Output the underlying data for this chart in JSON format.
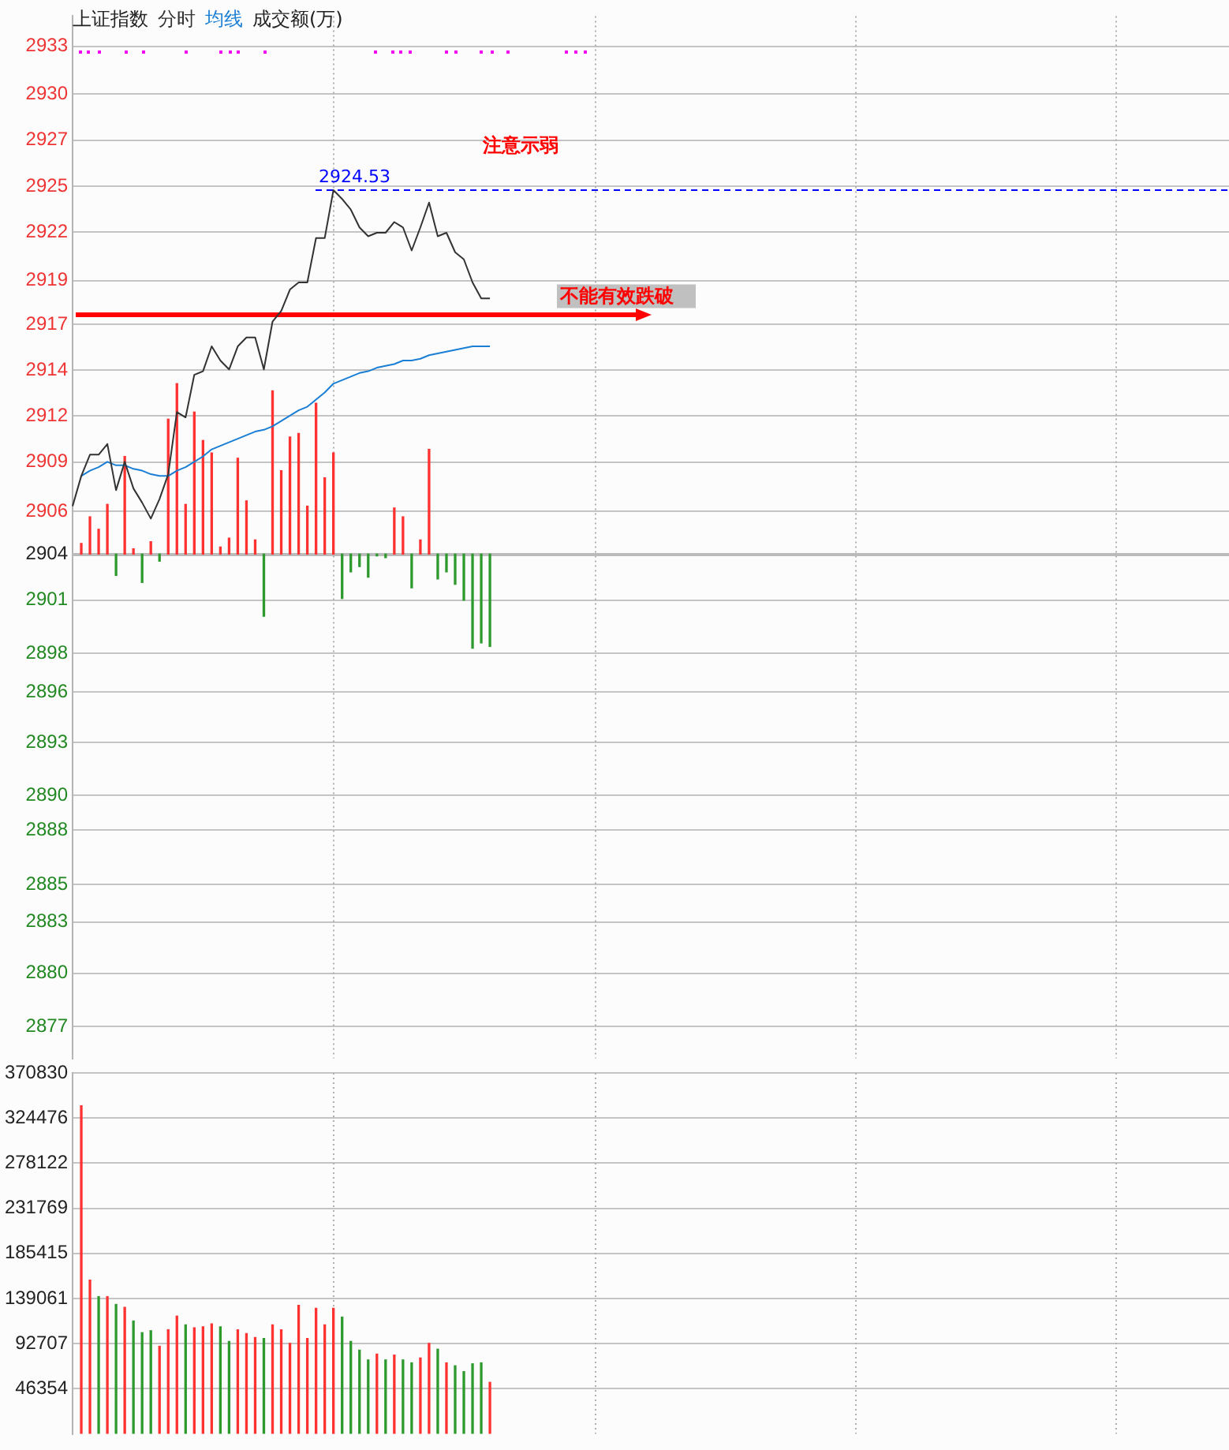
{
  "chart_data": [
    {
      "type": "line",
      "title": "上证指数",
      "legend": "top left",
      "grid": true,
      "marker": "none",
      "categories": [
        null,
        null,
        null,
        null,
        null,
        null,
        null,
        null,
        null,
        null,
        null,
        null,
        null,
        null,
        null,
        null,
        null,
        null,
        null,
        null,
        null,
        null,
        null,
        null,
        null,
        null,
        null,
        null,
        null,
        null,
        null,
        null,
        null,
        null,
        null,
        null,
        null,
        null,
        null,
        null,
        null,
        null,
        null,
        null,
        null,
        null,
        null,
        null,
        null,
        null,
        null,
        null,
        null,
        null,
        null,
        null,
        null,
        null,
        null,
        null,
        null,
        null,
        null,
        null,
        null,
        null,
        null,
        null,
        null,
        null,
        null,
        null,
        null,
        null,
        null,
        null,
        null,
        null,
        null,
        null,
        null,
        null,
        null,
        null,
        null,
        null,
        null,
        null,
        null,
        null,
        null,
        null,
        null,
        null,
        null,
        null,
        null,
        null,
        null,
        null,
        null,
        null,
        null,
        null,
        null,
        null,
        null,
        null,
        null,
        null,
        null,
        null,
        null,
        null,
        null,
        null,
        null,
        null,
        null,
        null,
        null,
        null,
        null,
        null,
        null,
        null,
        null,
        null,
        null,
        null,
        null,
        null,
        null,
        null
      ],
      "series": [
        {
          "name": "分时",
          "type": "line",
          "color": "#333333",
          "values": [
            2906.7,
            2908.4,
            2909.6,
            2909.6,
            2910.2,
            2907.6,
            2909.2,
            2907.7,
            2906.9,
            2906.0,
            2907.1,
            2908.5,
            2912.0,
            2911.7,
            2914.1,
            2914.3,
            2915.7,
            2914.9,
            2914.4,
            2915.7,
            2916.2,
            2916.2,
            2914.4,
            2917.1,
            2917.7,
            2918.9,
            2919.3,
            2919.3,
            2921.8,
            2921.8,
            2924.5,
            2924.0,
            2923.4,
            2922.4,
            2921.9,
            2922.1,
            2922.1,
            2922.7,
            2922.4,
            2921.1,
            2922.4,
            2923.8,
            2921.9,
            2922.1,
            2921.0,
            2920.6,
            2919.3,
            2918.4,
            2918.4,
            null,
            null,
            null,
            null,
            null,
            null,
            null,
            null,
            null,
            null,
            null,
            null,
            null,
            null,
            null,
            null,
            null,
            null,
            null,
            null,
            null,
            null,
            null,
            null,
            null,
            null,
            null,
            null,
            null,
            null,
            null,
            null,
            null,
            null,
            null,
            null,
            null,
            null,
            null,
            null,
            null,
            null,
            null,
            null,
            null,
            null,
            null,
            null,
            null,
            null,
            null,
            null,
            null,
            null,
            null,
            null,
            null,
            null,
            null,
            null,
            null,
            null,
            null,
            null,
            null,
            null,
            null,
            null,
            null,
            null,
            null,
            null,
            null,
            null,
            null,
            null,
            null,
            null,
            null,
            null,
            null,
            null,
            null,
            null,
            null
          ]
        },
        {
          "name": "均线",
          "type": "line",
          "color": "#1a7fd4",
          "values": [
            null,
            2908.4,
            2908.7,
            2908.9,
            2909.2,
            2909.0,
            2909.0,
            2908.8,
            2908.7,
            2908.5,
            2908.4,
            2908.4,
            2908.7,
            2908.9,
            2909.2,
            2909.5,
            2909.9,
            2910.1,
            2910.3,
            2910.5,
            2910.7,
            2910.9,
            2911.0,
            2911.2,
            2911.5,
            2911.8,
            2912.1,
            2912.3,
            2912.7,
            2913.1,
            2913.6,
            2913.8,
            2914.0,
            2914.2,
            2914.3,
            2914.5,
            2914.6,
            2914.7,
            2914.9,
            2914.9,
            2915.0,
            2915.2,
            2915.3,
            2915.4,
            2915.5,
            2915.6,
            2915.7,
            2915.7,
            2915.7,
            null,
            null,
            null,
            null,
            null,
            null,
            null,
            null,
            null,
            null,
            null,
            null,
            null,
            null,
            null,
            null,
            null,
            null,
            null,
            null,
            null,
            null,
            null,
            null,
            null,
            null,
            null,
            null,
            null,
            null,
            null,
            null,
            null,
            null,
            null,
            null,
            null,
            null,
            null,
            null,
            null,
            null,
            null,
            null,
            null,
            null,
            null,
            null,
            null,
            null,
            null,
            null,
            null,
            null,
            null,
            null,
            null,
            null,
            null,
            null,
            null,
            null,
            null,
            null,
            null,
            null,
            null,
            null,
            null,
            null,
            null,
            null,
            null,
            null,
            null,
            null,
            null,
            null,
            null,
            null,
            null,
            null,
            null,
            null,
            null
          ]
        },
        {
          "type": "bar",
          "values": [
            null,
            0.6,
            2.1,
            1.4,
            2.8,
            -1.2,
            5.5,
            0.3,
            -1.6,
            0.7,
            -0.4,
            7.6,
            9.6,
            2.8,
            8.0,
            6.4,
            5.7,
            0.4,
            0.9,
            5.4,
            3.0,
            0.8,
            -3.5,
            9.2,
            4.7,
            6.6,
            6.8,
            2.7,
            8.5,
            4.3,
            5.7,
            -2.5,
            -1.0,
            -0.7,
            -1.3,
            -0.1,
            -0.2,
            2.6,
            2.1,
            -1.9,
            0.8,
            5.9,
            -1.4,
            -1.0,
            -1.7,
            -2.6,
            -5.3,
            -5.0,
            -5.2,
            null,
            null,
            null,
            null,
            null,
            null,
            null,
            null,
            null,
            null,
            null,
            null,
            null,
            null,
            null,
            null,
            null,
            null,
            null,
            null,
            null,
            null,
            null,
            null,
            null,
            null,
            null,
            null,
            null,
            null,
            null,
            null,
            null,
            null,
            null,
            null,
            null,
            null,
            null,
            null,
            null,
            null,
            null,
            null,
            null,
            null,
            null,
            null,
            null,
            null,
            null,
            null,
            null,
            null,
            null,
            null,
            null,
            null,
            null,
            null,
            null,
            null,
            null,
            null,
            null,
            null,
            null,
            null,
            null,
            null,
            null,
            null,
            null,
            null,
            null,
            null,
            null,
            null,
            null,
            null,
            null,
            null,
            null,
            null,
            null
          ],
          "base": [
            null,
            2904,
            2904,
            2904,
            2904,
            2904,
            2904,
            2904,
            2904,
            2904,
            2904,
            2904,
            2904,
            2904,
            2904,
            2904,
            2904,
            2904,
            2904,
            2904,
            2904,
            2904,
            2904,
            2904,
            2904,
            2904,
            2904,
            2904,
            2904,
            2904,
            2904,
            2904,
            2904,
            2904,
            2904,
            2904,
            2904,
            2904,
            2904,
            2904,
            2904,
            2904,
            2904,
            2904,
            2904,
            2904,
            2904,
            2904,
            2904,
            null,
            null,
            null,
            null,
            null,
            null,
            null,
            null,
            null,
            null,
            null,
            null,
            null,
            null,
            null,
            null,
            null,
            null,
            null,
            null,
            null,
            null,
            null,
            null,
            null,
            null,
            null,
            null,
            null,
            null,
            null,
            null,
            null,
            null,
            null,
            null,
            null,
            null,
            null,
            null,
            null,
            null,
            null,
            null,
            null,
            null,
            null,
            null,
            null,
            null,
            null,
            null,
            null,
            null,
            null,
            null,
            null,
            null,
            null,
            null,
            null,
            null,
            null,
            null,
            null,
            null,
            null,
            null,
            null,
            null,
            null,
            null,
            null,
            null,
            null,
            null,
            null,
            null,
            null,
            null,
            null,
            null,
            null,
            null,
            null
          ],
          "colors": [
            null,
            "#ff3232",
            "#ff3232",
            "#ff3232",
            "#ff3232",
            "#2e9a2e",
            "#ff3232",
            "#ff3232",
            "#2e9a2e",
            "#ff3232",
            "#2e9a2e",
            "#ff3232",
            "#ff3232",
            "#ff3232",
            "#ff3232",
            "#ff3232",
            "#ff3232",
            "#ff3232",
            "#ff3232",
            "#ff3232",
            "#ff3232",
            "#ff3232",
            "#2e9a2e",
            "#ff3232",
            "#ff3232",
            "#ff3232",
            "#ff3232",
            "#ff3232",
            "#ff3232",
            "#ff3232",
            "#ff3232",
            "#2e9a2e",
            "#2e9a2e",
            "#2e9a2e",
            "#2e9a2e",
            "#2e9a2e",
            "#2e9a2e",
            "#ff3232",
            "#ff3232",
            "#2e9a2e",
            "#ff3232",
            "#ff3232",
            "#2e9a2e",
            "#2e9a2e",
            "#2e9a2e",
            "#2e9a2e",
            "#2e9a2e",
            "#2e9a2e",
            "#2e9a2e",
            null,
            null,
            null,
            null,
            null,
            null,
            null,
            null,
            null,
            null,
            null,
            null,
            null,
            null,
            null,
            null,
            null,
            null,
            null,
            null,
            null,
            null,
            null,
            null,
            null,
            null,
            null,
            null,
            null,
            null,
            null,
            null,
            null,
            null,
            null,
            null,
            null,
            null,
            null,
            null,
            null,
            null,
            null,
            null,
            null,
            null,
            null,
            null,
            null,
            null,
            null,
            null,
            null,
            null,
            null,
            null,
            null,
            null,
            null,
            null,
            null,
            null,
            null,
            null,
            null,
            null,
            null,
            null,
            null,
            null,
            null,
            null,
            null,
            null,
            null,
            null,
            null,
            null,
            null,
            null,
            null,
            null,
            null,
            null,
            null
          ]
        }
      ],
      "ylim": [
        2875.6,
        2934.3
      ],
      "yticks": [
        {
          "value": 2877.4,
          "label": "2877"
        },
        {
          "value": 2880.4,
          "label": "2880"
        },
        {
          "value": 2883.28,
          "label": "2883"
        },
        {
          "value": 2885.4,
          "label": "2885"
        },
        {
          "value": 2888.46,
          "label": "2888"
        },
        {
          "value": 2890.4,
          "label": "2890"
        },
        {
          "value": 2893.4,
          "label": "2893"
        },
        {
          "value": 2896.23,
          "label": "2896"
        },
        {
          "value": 2898.4,
          "label": "2898"
        },
        {
          "value": 2901.41,
          "label": "2901"
        },
        2904,
        {
          "value": 2906.4,
          "label": "2906"
        },
        {
          "value": 2909.18,
          "label": "2909"
        },
        {
          "value": 2911.77,
          "label": "2912"
        },
        {
          "value": 2914.36,
          "label": "2914"
        },
        {
          "value": 2916.95,
          "label": "2917"
        },
        {
          "value": 2919.4,
          "label": "2919"
        },
        {
          "value": 2922.13,
          "label": "2922"
        },
        {
          "value": 2924.72,
          "label": "2925"
        },
        {
          "value": 2927.31,
          "label": "2927"
        },
        {
          "value": 2929.9,
          "label": "2930"
        },
        {
          "value": 2932.6,
          "label": "2933"
        }
      ],
      "ref_lines": [
        {
          "axis": "y",
          "value": 2924.53,
          "label": "2924.53",
          "color": "#0000ff",
          "line_style": "dashed"
        },
        {
          "axis": "y",
          "value": 2917.5,
          "label": "不能有效跌破",
          "color": "#ff0000",
          "line_style": "solid"
        },
        {
          "axis": "y",
          "value": 2904,
          "color": "#bbbbbb",
          "line_style": "solid"
        }
      ],
      "annotations": [
        "注意示弱"
      ]
    },
    {
      "type": "bar",
      "title": "成交额(万)",
      "grid": true,
      "categories": [
        null,
        null,
        null,
        null,
        null,
        null,
        null,
        null,
        null,
        null,
        null,
        null,
        null,
        null,
        null,
        null,
        null,
        null,
        null,
        null,
        null,
        null,
        null,
        null,
        null,
        null,
        null,
        null,
        null,
        null,
        null,
        null,
        null,
        null,
        null,
        null,
        null,
        null,
        null,
        null,
        null,
        null,
        null,
        null,
        null,
        null,
        null,
        null,
        null,
        null,
        null,
        null,
        null,
        null,
        null,
        null,
        null,
        null,
        null,
        null,
        null,
        null,
        null,
        null,
        null,
        null,
        null,
        null,
        null,
        null,
        null,
        null,
        null,
        null,
        null,
        null,
        null,
        null,
        null,
        null,
        null,
        null,
        null,
        null,
        null,
        null,
        null,
        null,
        null,
        null,
        null,
        null,
        null,
        null,
        null,
        null,
        null,
        null,
        null,
        null,
        null,
        null,
        null,
        null,
        null,
        null,
        null,
        null,
        null,
        null,
        null,
        null,
        null,
        null,
        null,
        null,
        null,
        null,
        null,
        null,
        null,
        null,
        null,
        null,
        null,
        null,
        null,
        null,
        null,
        null,
        null,
        null,
        null,
        null
      ],
      "values": [
        null,
        337000,
        158000,
        141000,
        141000,
        133000,
        130000,
        116000,
        104000,
        106000,
        90000,
        107000,
        121000,
        112000,
        109000,
        110000,
        113000,
        110000,
        95000,
        107000,
        103000,
        99000,
        98000,
        112000,
        107000,
        93000,
        132000,
        98000,
        129000,
        112000,
        129000,
        120000,
        95000,
        86000,
        76000,
        82000,
        76000,
        81000,
        76000,
        73000,
        78000,
        93000,
        87000,
        73000,
        70000,
        64000,
        72000,
        73000,
        53000,
        null,
        null,
        null,
        null,
        null,
        null,
        null,
        null,
        null,
        null,
        null,
        null,
        null,
        null,
        null,
        null,
        null,
        null,
        null,
        null,
        null,
        null,
        null,
        null,
        null,
        null,
        null,
        null,
        null,
        null,
        null,
        null,
        null,
        null,
        null,
        null,
        null,
        null,
        null,
        null,
        null,
        null,
        null,
        null,
        null,
        null,
        null,
        null,
        null,
        null,
        null,
        null,
        null,
        null,
        null,
        null,
        null,
        null,
        null,
        null,
        null,
        null,
        null,
        null,
        null,
        null,
        null,
        null,
        null,
        null,
        null,
        null,
        null,
        null,
        null,
        null,
        null,
        null,
        null,
        null,
        null,
        null,
        null,
        null,
        null
      ],
      "colors": [
        null,
        "#ff3232",
        "#ff3232",
        "#2e9a2e",
        "#ff3232",
        "#2e9a2e",
        "#ff3232",
        "#2e9a2e",
        "#2e9a2e",
        "#2e9a2e",
        "#ff3232",
        "#ff3232",
        "#ff3232",
        "#2e9a2e",
        "#ff3232",
        "#ff3232",
        "#ff3232",
        "#2e9a2e",
        "#2e9a2e",
        "#ff3232",
        "#ff3232",
        "#ff3232",
        "#2e9a2e",
        "#ff3232",
        "#ff3232",
        "#ff3232",
        "#ff3232",
        "#ff3232",
        "#ff3232",
        "#ff3232",
        "#ff3232",
        "#2e9a2e",
        "#2e9a2e",
        "#2e9a2e",
        "#2e9a2e",
        "#ff3232",
        "#2e9a2e",
        "#ff3232",
        "#2e9a2e",
        "#2e9a2e",
        "#ff3232",
        "#ff3232",
        "#2e9a2e",
        "#ff3232",
        "#2e9a2e",
        "#2e9a2e",
        "#2e9a2e",
        "#2e9a2e",
        "#ff3232",
        null,
        null,
        null,
        null,
        null,
        null,
        null,
        null,
        null,
        null,
        null,
        null,
        null,
        null,
        null,
        null,
        null,
        null,
        null,
        null,
        null,
        null,
        null,
        null,
        null,
        null,
        null,
        null,
        null,
        null,
        null,
        null,
        null,
        null,
        null,
        null,
        null,
        null,
        null,
        null,
        null,
        null,
        null,
        null,
        null,
        null,
        null,
        null,
        null,
        null,
        null,
        null,
        null,
        null,
        null,
        null,
        null,
        null,
        null,
        null,
        null,
        null,
        null,
        null,
        null,
        null,
        null,
        null,
        null,
        null,
        null,
        null,
        null,
        null,
        null,
        null,
        null,
        null,
        null,
        null,
        null,
        null,
        null,
        null,
        null
      ],
      "ylim": [
        0,
        370830
      ],
      "yticks": [
        46354,
        92707,
        139061,
        185415,
        231769,
        278122,
        324476,
        370830
      ]
    }
  ]
}
